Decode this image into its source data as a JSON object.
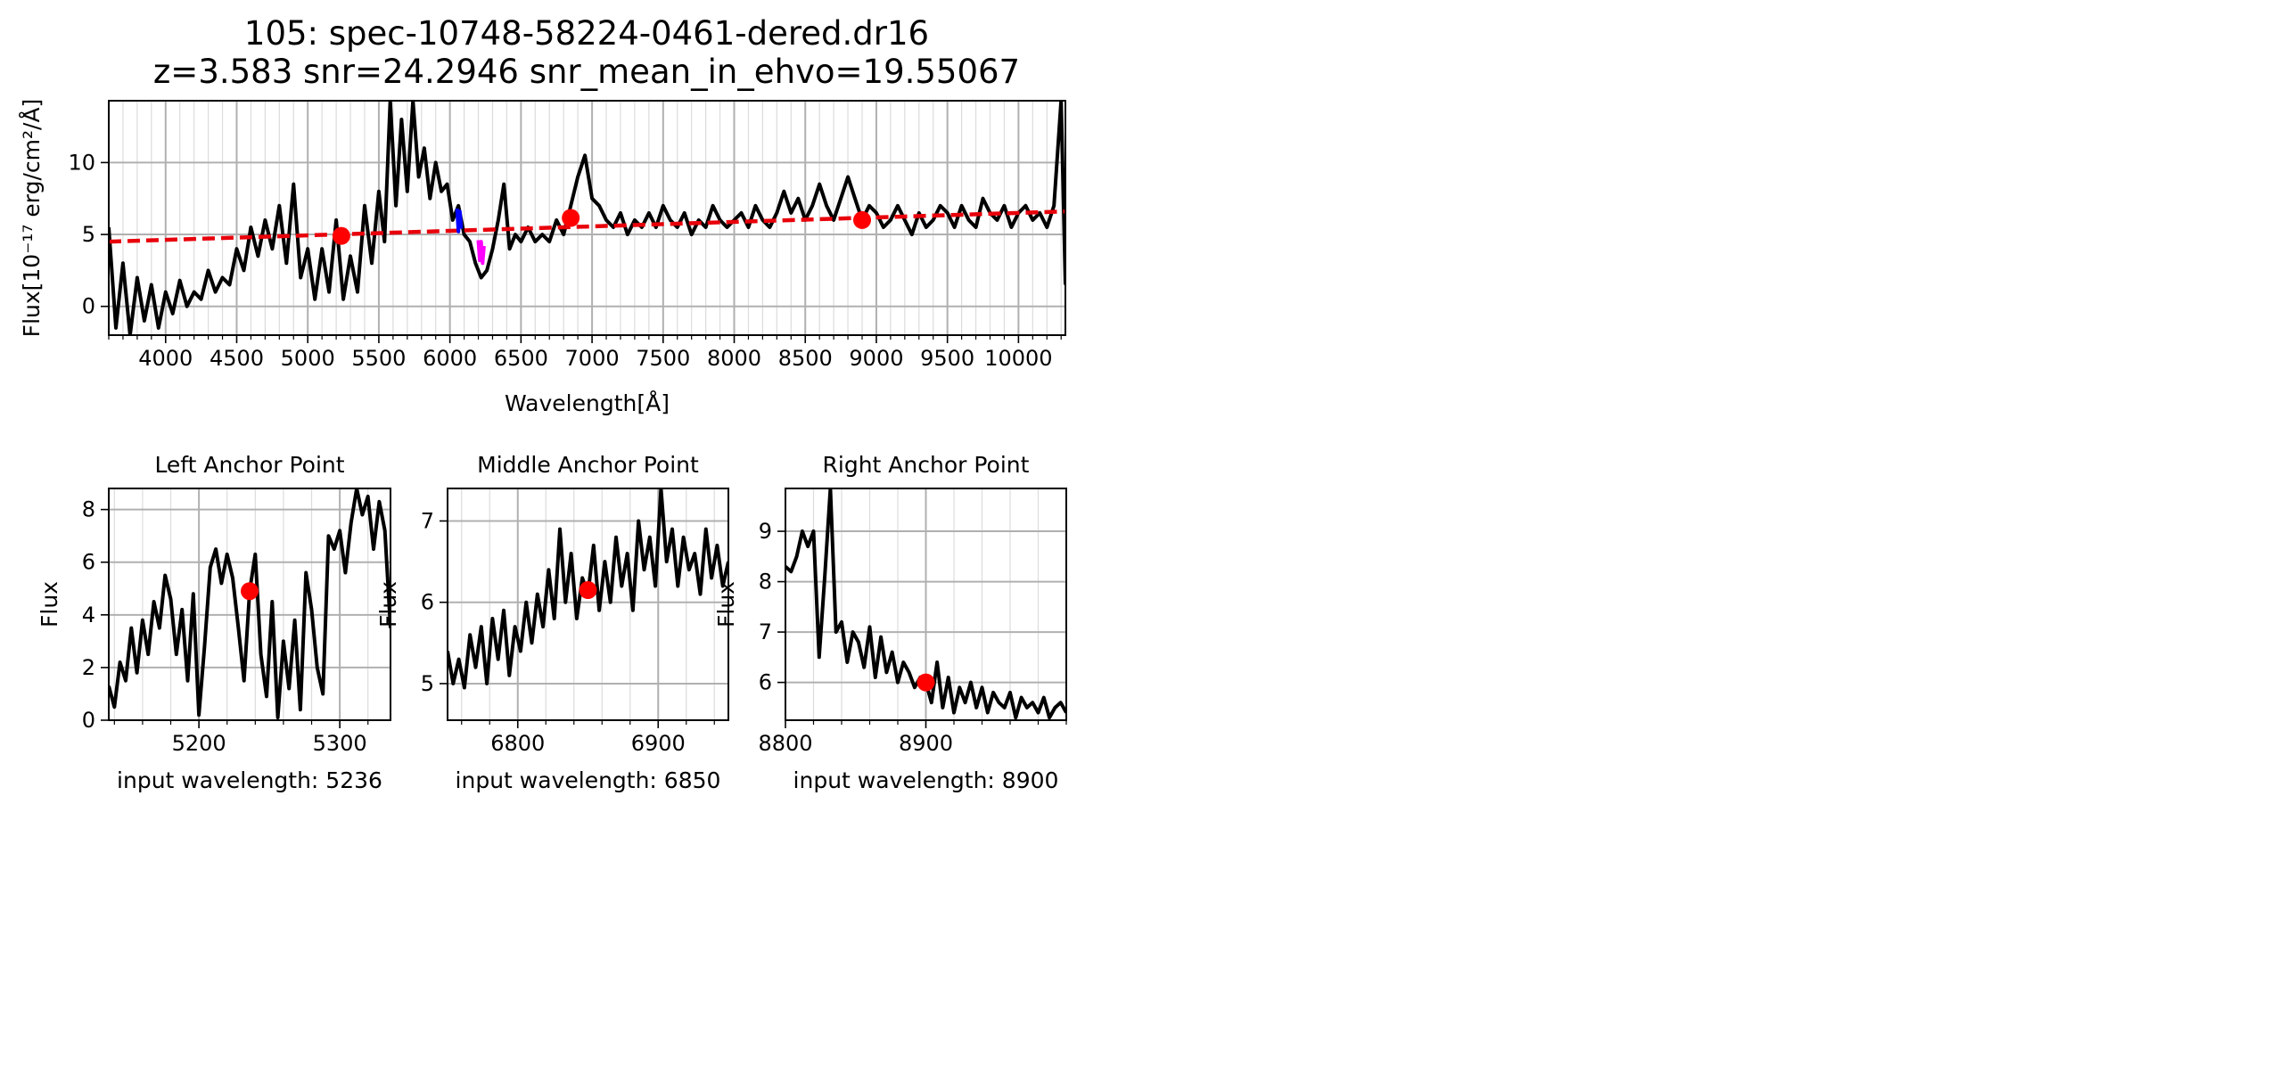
{
  "figure": {
    "title_line1": "105: spec-10748-58224-0461-dered.dr16",
    "title_line2": "z=3.583 snr=24.2946 snr_mean_in_ehvo=19.55067"
  },
  "chart_data": [
    {
      "id": "main",
      "type": "line",
      "title": "",
      "xlabel": "Wavelength[Å]",
      "ylabel": "Flux[10⁻¹⁷ erg/cm²/Å]",
      "xlim": [
        3600,
        10330
      ],
      "ylim": [
        -2,
        14.3
      ],
      "xticks": [
        4000,
        4500,
        5000,
        5500,
        6000,
        6500,
        7000,
        7500,
        8000,
        8500,
        9000,
        9500,
        10000
      ],
      "yticks": [
        0,
        5,
        10
      ],
      "grid": true,
      "minor_x_step": 100,
      "series": [
        {
          "role": "spectrum",
          "color": "#000000",
          "x": [
            3600,
            3650,
            3700,
            3750,
            3800,
            3850,
            3900,
            3950,
            4000,
            4050,
            4100,
            4150,
            4200,
            4250,
            4300,
            4350,
            4400,
            4450,
            4500,
            4550,
            4600,
            4650,
            4700,
            4750,
            4800,
            4850,
            4900,
            4950,
            5000,
            5050,
            5100,
            5150,
            5200,
            5250,
            5300,
            5350,
            5400,
            5450,
            5500,
            5540,
            5580,
            5620,
            5660,
            5700,
            5740,
            5780,
            5820,
            5860,
            5900,
            5940,
            5980,
            6020,
            6060,
            6100,
            6140,
            6180,
            6220,
            6260,
            6300,
            6340,
            6380,
            6420,
            6460,
            6500,
            6550,
            6600,
            6650,
            6700,
            6750,
            6800,
            6850,
            6900,
            6950,
            7000,
            7050,
            7100,
            7150,
            7200,
            7250,
            7300,
            7350,
            7400,
            7450,
            7500,
            7550,
            7600,
            7650,
            7700,
            7750,
            7800,
            7850,
            7900,
            7950,
            8000,
            8050,
            8100,
            8150,
            8200,
            8250,
            8300,
            8350,
            8400,
            8450,
            8500,
            8550,
            8600,
            8650,
            8700,
            8750,
            8800,
            8850,
            8900,
            8950,
            9000,
            9050,
            9100,
            9150,
            9200,
            9250,
            9300,
            9350,
            9400,
            9450,
            9500,
            9550,
            9600,
            9650,
            9700,
            9750,
            9800,
            9850,
            9900,
            9950,
            10000,
            10050,
            10100,
            10150,
            10200,
            10250,
            10300,
            10330
          ],
          "y": [
            5.5,
            -1.5,
            3,
            -2,
            2,
            -1,
            1.5,
            -1.5,
            1,
            -0.5,
            1.8,
            0,
            1,
            0.5,
            2.5,
            1,
            2,
            1.5,
            4,
            2.5,
            5.5,
            3.5,
            6,
            4,
            7,
            3,
            8.5,
            2,
            4,
            0.5,
            4,
            1,
            6,
            0.5,
            3.5,
            1,
            7,
            3,
            8,
            4.5,
            14.3,
            7,
            13,
            8,
            14.3,
            9,
            11,
            7.5,
            10,
            8,
            8.5,
            6,
            7,
            5,
            4.5,
            3,
            2,
            2.5,
            4,
            6,
            8.5,
            4,
            5,
            4.5,
            5.5,
            4.5,
            5,
            4.5,
            6,
            5,
            7,
            9,
            10.5,
            7.5,
            7,
            6,
            5.5,
            6.5,
            5,
            6,
            5.5,
            6.5,
            5.5,
            7,
            6,
            5.5,
            6.5,
            5,
            6,
            5.5,
            7,
            6,
            5.5,
            6,
            6.5,
            5.5,
            7,
            6,
            5.5,
            6.5,
            8,
            6.5,
            7.5,
            6,
            7,
            8.5,
            7,
            6,
            7.5,
            9,
            7.5,
            6,
            7,
            6.5,
            5.5,
            6,
            7,
            6,
            5,
            6.5,
            5.5,
            6,
            7,
            6.5,
            5.5,
            7,
            6,
            5.5,
            7.5,
            6.5,
            6,
            7,
            5.5,
            6.5,
            7,
            6,
            6.5,
            5.5,
            7,
            14.3,
            1.5
          ]
        },
        {
          "role": "continuum-fit",
          "color": "#e8000b",
          "dashed": true,
          "x": [
            3600,
            10330
          ],
          "y": [
            4.5,
            6.6
          ]
        },
        {
          "role": "absorption-blue",
          "color": "#0000ff",
          "x": [
            6050,
            6060,
            6070,
            6080
          ],
          "y": [
            6.8,
            5.2,
            6.6,
            5.4
          ]
        },
        {
          "role": "absorption-magenta",
          "color": "#ff00ff",
          "x": [
            6200,
            6210,
            6220,
            6230,
            6240
          ],
          "y": [
            4.6,
            3.2,
            4.5,
            3.0,
            4.2
          ]
        }
      ],
      "anchor_points": {
        "color": "#ff0000",
        "points": [
          {
            "x": 5236,
            "y": 4.9
          },
          {
            "x": 6850,
            "y": 6.15
          },
          {
            "x": 8900,
            "y": 6.0
          }
        ]
      }
    },
    {
      "id": "left",
      "type": "line",
      "title": "Left Anchor Point",
      "xlabel": "input wavelength: 5236",
      "ylabel": "Flux",
      "xlim": [
        5136,
        5336
      ],
      "ylim": [
        0,
        8.8
      ],
      "xticks": [
        5200,
        5300
      ],
      "yticks": [
        0,
        2,
        4,
        6,
        8
      ],
      "grid": true,
      "minor_x_step": 20,
      "series": [
        {
          "role": "spectrum",
          "color": "#000000",
          "x": [
            5136,
            5140,
            5144,
            5148,
            5152,
            5156,
            5160,
            5164,
            5168,
            5172,
            5176,
            5180,
            5184,
            5188,
            5192,
            5196,
            5200,
            5204,
            5208,
            5212,
            5216,
            5220,
            5224,
            5228,
            5232,
            5236,
            5240,
            5244,
            5248,
            5252,
            5256,
            5260,
            5264,
            5268,
            5272,
            5276,
            5280,
            5284,
            5288,
            5292,
            5296,
            5300,
            5304,
            5308,
            5312,
            5316,
            5320,
            5324,
            5328,
            5332,
            5336
          ],
          "y": [
            1.3,
            0.5,
            2.2,
            1.5,
            3.5,
            1.8,
            3.8,
            2.5,
            4.5,
            3.5,
            5.5,
            4.6,
            2.5,
            4.2,
            1.5,
            4.8,
            0.2,
            2.8,
            5.8,
            6.5,
            5.2,
            6.3,
            5.4,
            3.5,
            1.5,
            4.9,
            6.3,
            2.5,
            0.9,
            4.5,
            0.1,
            3.0,
            1.2,
            3.8,
            0.4,
            5.6,
            4.2,
            2.0,
            1.0,
            7.0,
            6.5,
            7.2,
            5.6,
            7.5,
            8.8,
            7.8,
            8.5,
            6.5,
            8.3,
            7.2,
            3.5
          ]
        }
      ],
      "anchor_points": {
        "color": "#ff0000",
        "points": [
          {
            "x": 5236,
            "y": 4.9
          }
        ]
      }
    },
    {
      "id": "middle",
      "type": "line",
      "title": "Middle Anchor Point",
      "xlabel": "input wavelength: 6850",
      "ylabel": "Flux",
      "xlim": [
        6750,
        6950
      ],
      "ylim": [
        4.55,
        7.4
      ],
      "xticks": [
        6800,
        6900
      ],
      "yticks": [
        5,
        6,
        7
      ],
      "grid": true,
      "minor_x_step": 20,
      "series": [
        {
          "role": "spectrum",
          "color": "#000000",
          "x": [
            6750,
            6754,
            6758,
            6762,
            6766,
            6770,
            6774,
            6778,
            6782,
            6786,
            6790,
            6794,
            6798,
            6802,
            6806,
            6810,
            6814,
            6818,
            6822,
            6826,
            6830,
            6834,
            6838,
            6842,
            6846,
            6850,
            6854,
            6858,
            6862,
            6866,
            6870,
            6874,
            6878,
            6882,
            6886,
            6890,
            6894,
            6898,
            6902,
            6906,
            6910,
            6914,
            6918,
            6922,
            6926,
            6930,
            6934,
            6938,
            6942,
            6946,
            6950
          ],
          "y": [
            5.4,
            5.0,
            5.3,
            4.95,
            5.6,
            5.2,
            5.7,
            5.0,
            5.8,
            5.3,
            5.9,
            5.1,
            5.7,
            5.4,
            6.0,
            5.5,
            6.1,
            5.7,
            6.4,
            5.8,
            6.9,
            6.0,
            6.6,
            5.8,
            6.3,
            6.1,
            6.7,
            5.9,
            6.5,
            6.0,
            6.8,
            6.2,
            6.6,
            5.9,
            7.0,
            6.4,
            6.8,
            6.2,
            7.4,
            6.5,
            6.9,
            6.2,
            6.8,
            6.4,
            6.6,
            6.1,
            6.9,
            6.3,
            6.7,
            6.2,
            6.5
          ]
        }
      ],
      "anchor_points": {
        "color": "#ff0000",
        "points": [
          {
            "x": 6850,
            "y": 6.15
          }
        ]
      }
    },
    {
      "id": "right",
      "type": "line",
      "title": "Right Anchor Point",
      "xlabel": "input wavelength: 8900",
      "ylabel": "Flux",
      "xlim": [
        8800,
        9000
      ],
      "ylim": [
        5.25,
        9.85
      ],
      "xticks": [
        8800,
        8900
      ],
      "yticks": [
        6,
        7,
        8,
        9
      ],
      "grid": true,
      "minor_x_step": 20,
      "series": [
        {
          "role": "spectrum",
          "color": "#000000",
          "x": [
            8800,
            8804,
            8808,
            8812,
            8816,
            8820,
            8824,
            8828,
            8832,
            8836,
            8840,
            8844,
            8848,
            8852,
            8856,
            8860,
            8864,
            8868,
            8872,
            8876,
            8880,
            8884,
            8888,
            8892,
            8896,
            8900,
            8904,
            8908,
            8912,
            8916,
            8920,
            8924,
            8928,
            8932,
            8936,
            8940,
            8944,
            8948,
            8952,
            8956,
            8960,
            8964,
            8968,
            8972,
            8976,
            8980,
            8984,
            8988,
            8992,
            8996,
            9000
          ],
          "y": [
            8.3,
            8.2,
            8.5,
            9.0,
            8.7,
            9.0,
            6.5,
            8.1,
            9.85,
            7.0,
            7.2,
            6.4,
            7.0,
            6.8,
            6.3,
            7.1,
            6.1,
            6.9,
            6.2,
            6.6,
            6.0,
            6.4,
            6.2,
            5.9,
            6.1,
            6.0,
            5.6,
            6.4,
            5.5,
            6.1,
            5.4,
            5.9,
            5.6,
            6.0,
            5.5,
            5.9,
            5.4,
            5.8,
            5.6,
            5.5,
            5.8,
            5.3,
            5.7,
            5.5,
            5.6,
            5.4,
            5.7,
            5.3,
            5.5,
            5.6,
            5.4
          ]
        }
      ],
      "anchor_points": {
        "color": "#ff0000",
        "points": [
          {
            "x": 8900,
            "y": 6.0
          }
        ]
      }
    }
  ]
}
